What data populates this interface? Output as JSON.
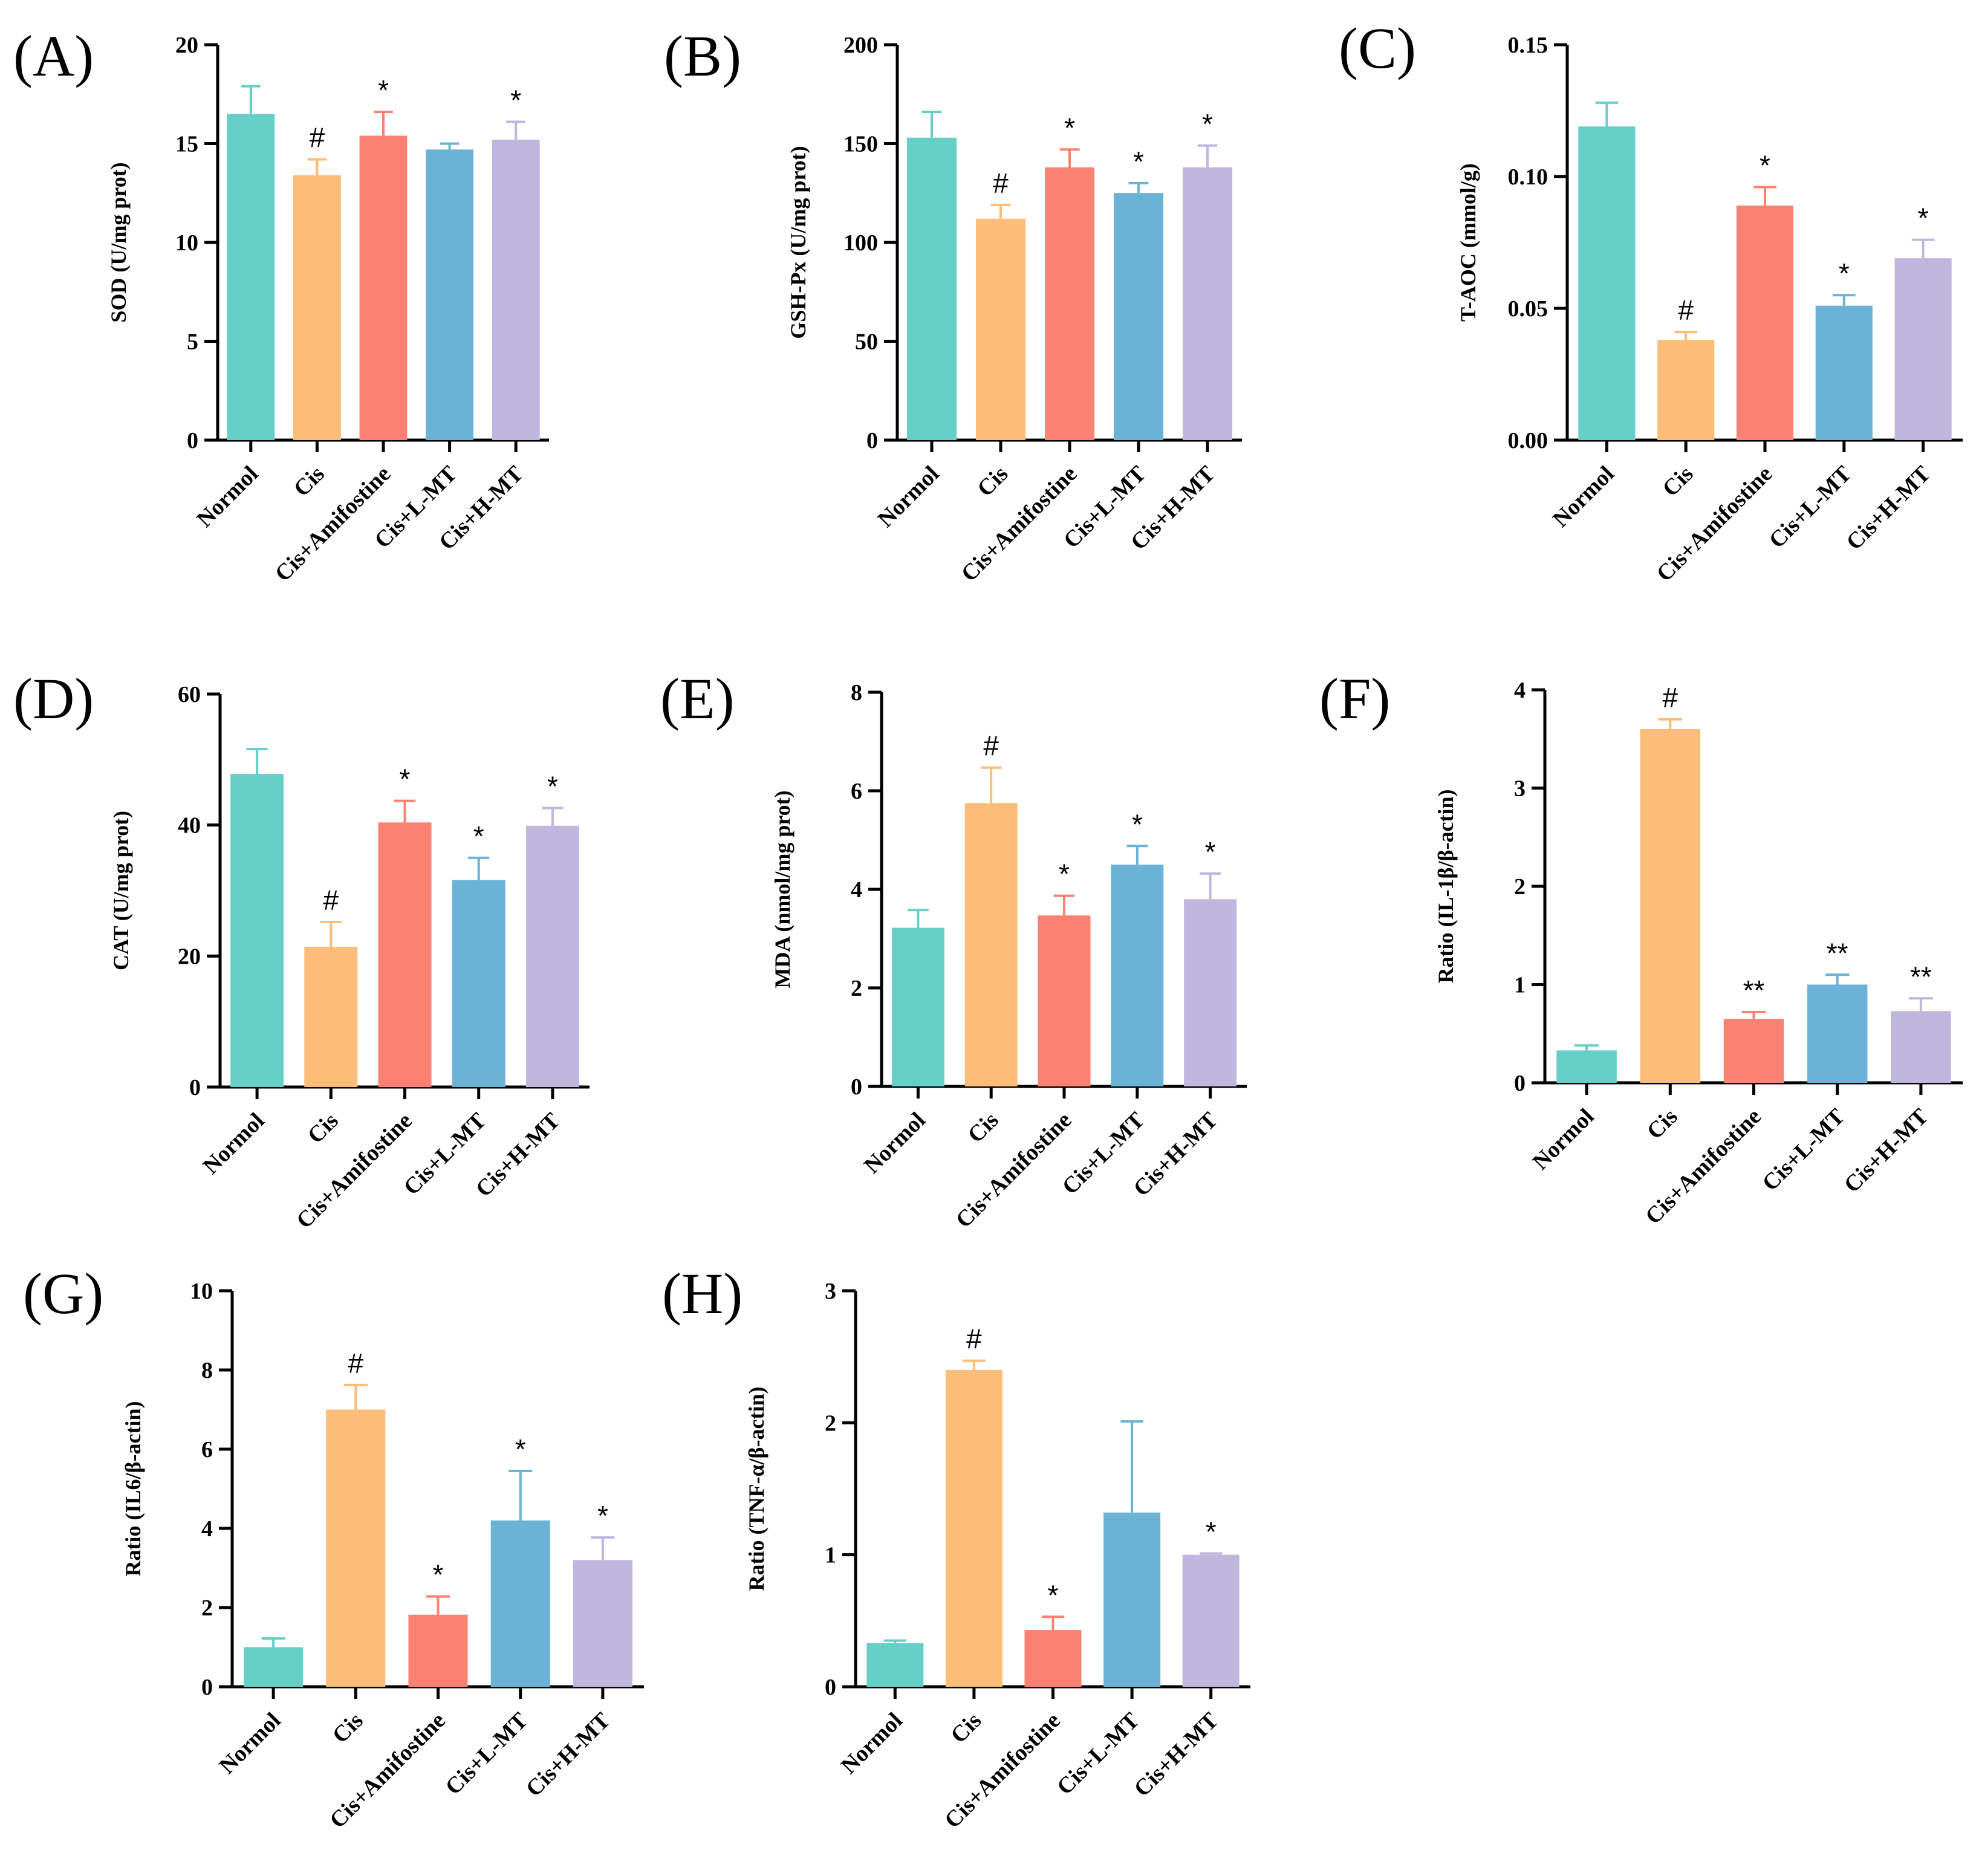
{
  "colors": {
    "bars": [
      "#66cfc8",
      "#fbbd78",
      "#fa8272",
      "#6ab2d6",
      "#c0b7df"
    ],
    "err": [
      "#66cfc8",
      "#fbbd78",
      "#fa8272",
      "#6ab2d6",
      "#c0b7df"
    ]
  },
  "chart_data": [
    {
      "type": "bar",
      "panel_label": "(A)",
      "title": "",
      "xlabel": "",
      "ylabel": "SOD (U/mg prot)",
      "categories": [
        "Normol",
        "Cis",
        "Cis+Amifostine",
        "Cis+L-MT",
        "Cis+H-MT"
      ],
      "values": [
        16.5,
        13.4,
        15.4,
        14.7,
        15.2
      ],
      "errors": [
        1.4,
        0.8,
        1.2,
        0.3,
        0.9
      ],
      "significance": [
        "",
        "#",
        "*",
        "",
        "*"
      ],
      "ylim": [
        0,
        20
      ],
      "yticks": [
        0,
        5,
        10,
        15,
        20
      ],
      "ytick_labels": [
        "0",
        "5",
        "10",
        "15",
        "20"
      ]
    },
    {
      "type": "bar",
      "panel_label": "(B)",
      "title": "",
      "xlabel": "",
      "ylabel": "GSH-Px (U/mg prot)",
      "categories": [
        "Normol",
        "Cis",
        "Cis+Amifostine",
        "Cis+L-MT",
        "Cis+H-MT"
      ],
      "values": [
        153,
        112,
        138,
        125,
        138
      ],
      "errors": [
        13,
        7,
        9,
        5,
        11
      ],
      "significance": [
        "",
        "#",
        "*",
        "*",
        "*"
      ],
      "ylim": [
        0,
        200
      ],
      "yticks": [
        0,
        50,
        100,
        150,
        200
      ],
      "ytick_labels": [
        "0",
        "50",
        "100",
        "150",
        "200"
      ]
    },
    {
      "type": "bar",
      "panel_label": "(C)",
      "title": "",
      "xlabel": "",
      "ylabel": "T-AOC (mmol/g)",
      "categories": [
        "Normol",
        "Cis",
        "Cis+Amifostine",
        "Cis+L-MT",
        "Cis+H-MT"
      ],
      "values": [
        0.119,
        0.038,
        0.089,
        0.051,
        0.069
      ],
      "errors": [
        0.009,
        0.003,
        0.007,
        0.004,
        0.007
      ],
      "significance": [
        "",
        "#",
        "*",
        "*",
        "*"
      ],
      "ylim": [
        0,
        0.15
      ],
      "yticks": [
        0,
        0.05,
        0.1,
        0.15
      ],
      "ytick_labels": [
        "0.00",
        "0.05",
        "0.10",
        "0.15"
      ]
    },
    {
      "type": "bar",
      "panel_label": "(D)",
      "title": "",
      "xlabel": "",
      "ylabel": "CAT (U/mg prot)",
      "categories": [
        "Normol",
        "Cis",
        "Cis+Amifostine",
        "Cis+L-MT",
        "Cis+H-MT"
      ],
      "values": [
        47.8,
        21.4,
        40.4,
        31.6,
        39.9
      ],
      "errors": [
        3.8,
        3.8,
        3.3,
        3.4,
        2.7
      ],
      "significance": [
        "",
        "#",
        "*",
        "*",
        "*"
      ],
      "ylim": [
        0,
        60
      ],
      "yticks": [
        0,
        20,
        40,
        60
      ],
      "ytick_labels": [
        "0",
        "20",
        "40",
        "60"
      ]
    },
    {
      "type": "bar",
      "panel_label": "(E)",
      "title": "",
      "xlabel": "",
      "ylabel": "MDA (nmol/mg prot)",
      "categories": [
        "Normol",
        "Cis",
        "Cis+Amifostine",
        "Cis+L-MT",
        "Cis+H-MT"
      ],
      "values": [
        3.22,
        5.75,
        3.47,
        4.5,
        3.8
      ],
      "errors": [
        0.36,
        0.72,
        0.4,
        0.38,
        0.52
      ],
      "significance": [
        "",
        "#",
        "*",
        "*",
        "*"
      ],
      "ylim": [
        0,
        8
      ],
      "yticks": [
        0,
        2,
        4,
        6,
        8
      ],
      "ytick_labels": [
        "0",
        "2",
        "4",
        "6",
        "8"
      ]
    },
    {
      "type": "bar",
      "panel_label": "(F)",
      "title": "",
      "xlabel": "",
      "ylabel": "Ratio (IL-1β/β-actin)",
      "categories": [
        "Normol",
        "Cis",
        "Cis+Amifostine",
        "Cis+L-MT",
        "Cis+H-MT"
      ],
      "values": [
        0.33,
        3.6,
        0.65,
        1.0,
        0.73
      ],
      "errors": [
        0.05,
        0.1,
        0.07,
        0.1,
        0.13
      ],
      "significance": [
        "",
        "#",
        "**",
        "**",
        "**"
      ],
      "ylim": [
        0,
        4
      ],
      "yticks": [
        0,
        1,
        2,
        3,
        4
      ],
      "ytick_labels": [
        "0",
        "1",
        "2",
        "3",
        "4"
      ]
    },
    {
      "type": "bar",
      "panel_label": "(G)",
      "title": "",
      "xlabel": "",
      "ylabel": "Ratio (IL6/β-actin)",
      "categories": [
        "Normol",
        "Cis",
        "Cis+Amifostine",
        "Cis+L-MT",
        "Cis+H-MT"
      ],
      "values": [
        1.0,
        7.0,
        1.82,
        4.2,
        3.2
      ],
      "errors": [
        0.22,
        0.62,
        0.46,
        1.25,
        0.57
      ],
      "significance": [
        "",
        "#",
        "*",
        "*",
        "*"
      ],
      "ylim": [
        0,
        10
      ],
      "yticks": [
        0,
        2,
        4,
        6,
        8,
        10
      ],
      "ytick_labels": [
        "0",
        "2",
        "4",
        "6",
        "8",
        "10"
      ]
    },
    {
      "type": "bar",
      "panel_label": "(H)",
      "title": "",
      "xlabel": "",
      "ylabel": "Ratio (TNF-α/β-actin)",
      "categories": [
        "Normol",
        "Cis",
        "Cis+Amifostine",
        "Cis+L-MT",
        "Cis+H-MT"
      ],
      "values": [
        0.33,
        2.4,
        0.43,
        1.32,
        1.0
      ],
      "errors": [
        0.02,
        0.07,
        0.1,
        0.69,
        0.01
      ],
      "significance": [
        "",
        "#",
        "*",
        "",
        "*"
      ],
      "ylim": [
        0,
        3
      ],
      "yticks": [
        0,
        1,
        2,
        3
      ],
      "ytick_labels": [
        "0",
        "1",
        "2",
        "3"
      ]
    }
  ]
}
